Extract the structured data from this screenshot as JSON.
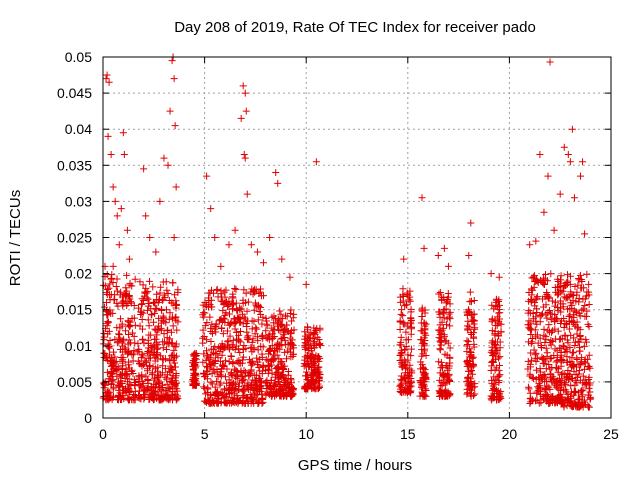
{
  "chart_data": {
    "type": "scatter",
    "title": "Day 208 of 2019, Rate Of TEC Index for receiver pado",
    "xlabel": "GPS time / hours",
    "ylabel": "ROTI / TECUs",
    "xlim": [
      0,
      25
    ],
    "ylim": [
      0,
      0.05
    ],
    "x_ticks": [
      0,
      5,
      10,
      15,
      20,
      25
    ],
    "x_tick_labels": [
      "0",
      "5",
      "10",
      "15",
      "20",
      "25"
    ],
    "y_ticks": [
      0,
      0.005,
      0.01,
      0.015,
      0.02,
      0.025,
      0.03,
      0.035,
      0.04,
      0.045,
      0.05
    ],
    "y_tick_labels": [
      "0",
      "0.005",
      "0.01",
      "0.015",
      "0.02",
      "0.025",
      "0.03",
      "0.035",
      "0.04",
      "0.045",
      "0.05"
    ],
    "grid": true,
    "marker": "+",
    "color": "#e00000",
    "series": [
      {
        "name": "ROTI",
        "points": [
          [
            0.1,
            0.021
          ],
          [
            0.15,
            0.047
          ],
          [
            0.2,
            0.0475
          ],
          [
            0.3,
            0.0465
          ],
          [
            0.25,
            0.039
          ],
          [
            0.4,
            0.0365
          ],
          [
            0.5,
            0.032
          ],
          [
            0.6,
            0.03
          ],
          [
            0.7,
            0.028
          ],
          [
            0.9,
            0.029
          ],
          [
            1.0,
            0.0395
          ],
          [
            1.05,
            0.0365
          ],
          [
            1.2,
            0.026
          ],
          [
            0.8,
            0.024
          ],
          [
            0.5,
            0.021
          ],
          [
            1.3,
            0.022
          ],
          [
            2.0,
            0.0345
          ],
          [
            2.1,
            0.028
          ],
          [
            2.3,
            0.025
          ],
          [
            2.6,
            0.023
          ],
          [
            2.8,
            0.03
          ],
          [
            3.0,
            0.036
          ],
          [
            3.2,
            0.035
          ],
          [
            3.3,
            0.0425
          ],
          [
            3.4,
            0.0495
          ],
          [
            3.45,
            0.05
          ],
          [
            3.5,
            0.047
          ],
          [
            3.55,
            0.0405
          ],
          [
            3.6,
            0.032
          ],
          [
            3.5,
            0.025
          ],
          [
            5.1,
            0.0335
          ],
          [
            5.3,
            0.029
          ],
          [
            5.5,
            0.025
          ],
          [
            5.8,
            0.021
          ],
          [
            6.2,
            0.024
          ],
          [
            6.5,
            0.026
          ],
          [
            6.8,
            0.0415
          ],
          [
            6.9,
            0.046
          ],
          [
            7.0,
            0.045
          ],
          [
            7.05,
            0.0425
          ],
          [
            6.95,
            0.0365
          ],
          [
            7.0,
            0.036
          ],
          [
            7.1,
            0.031
          ],
          [
            7.3,
            0.024
          ],
          [
            7.6,
            0.023
          ],
          [
            7.9,
            0.0215
          ],
          [
            8.2,
            0.025
          ],
          [
            8.5,
            0.034
          ],
          [
            8.6,
            0.0325
          ],
          [
            8.8,
            0.022
          ],
          [
            9.2,
            0.0195
          ],
          [
            10.0,
            0.0185
          ],
          [
            10.5,
            0.0355
          ],
          [
            14.8,
            0.022
          ],
          [
            15.0,
            0.017
          ],
          [
            15.7,
            0.0305
          ],
          [
            15.8,
            0.0235
          ],
          [
            16.5,
            0.0225
          ],
          [
            16.8,
            0.0235
          ],
          [
            17.0,
            0.021
          ],
          [
            18.0,
            0.0225
          ],
          [
            18.1,
            0.027
          ],
          [
            19.1,
            0.02
          ],
          [
            19.5,
            0.0195
          ],
          [
            21.0,
            0.024
          ],
          [
            21.3,
            0.0245
          ],
          [
            21.5,
            0.0365
          ],
          [
            21.7,
            0.0285
          ],
          [
            21.9,
            0.0335
          ],
          [
            22.0,
            0.0493
          ],
          [
            22.2,
            0.026
          ],
          [
            22.5,
            0.031
          ],
          [
            22.7,
            0.0375
          ],
          [
            22.9,
            0.0365
          ],
          [
            23.0,
            0.0355
          ],
          [
            23.1,
            0.04
          ],
          [
            23.2,
            0.0305
          ],
          [
            23.5,
            0.0335
          ],
          [
            23.6,
            0.0355
          ],
          [
            23.7,
            0.0255
          ],
          [
            23.9,
            0.0185
          ]
        ],
        "dense_bands": [
          {
            "from": 0.0,
            "to": 1.6,
            "y_from": 0.0025,
            "y_to": 0.02
          },
          {
            "from": 1.7,
            "to": 3.7,
            "y_from": 0.0025,
            "y_to": 0.019
          },
          {
            "from": 4.4,
            "to": 4.6,
            "y_from": 0.0045,
            "y_to": 0.0095
          },
          {
            "from": 4.9,
            "to": 7.9,
            "y_from": 0.002,
            "y_to": 0.018
          },
          {
            "from": 8.0,
            "to": 9.4,
            "y_from": 0.003,
            "y_to": 0.015
          },
          {
            "from": 9.9,
            "to": 10.7,
            "y_from": 0.004,
            "y_to": 0.013
          },
          {
            "from": 14.6,
            "to": 15.2,
            "y_from": 0.0035,
            "y_to": 0.018
          },
          {
            "from": 15.6,
            "to": 15.9,
            "y_from": 0.003,
            "y_to": 0.017
          },
          {
            "from": 16.5,
            "to": 17.1,
            "y_from": 0.003,
            "y_to": 0.0175
          },
          {
            "from": 17.9,
            "to": 18.3,
            "y_from": 0.003,
            "y_to": 0.0175
          },
          {
            "from": 19.1,
            "to": 19.6,
            "y_from": 0.0025,
            "y_to": 0.0165
          },
          {
            "from": 20.9,
            "to": 22.6,
            "y_from": 0.002,
            "y_to": 0.02
          },
          {
            "from": 22.6,
            "to": 24.0,
            "y_from": 0.0015,
            "y_to": 0.02
          }
        ]
      }
    ]
  }
}
